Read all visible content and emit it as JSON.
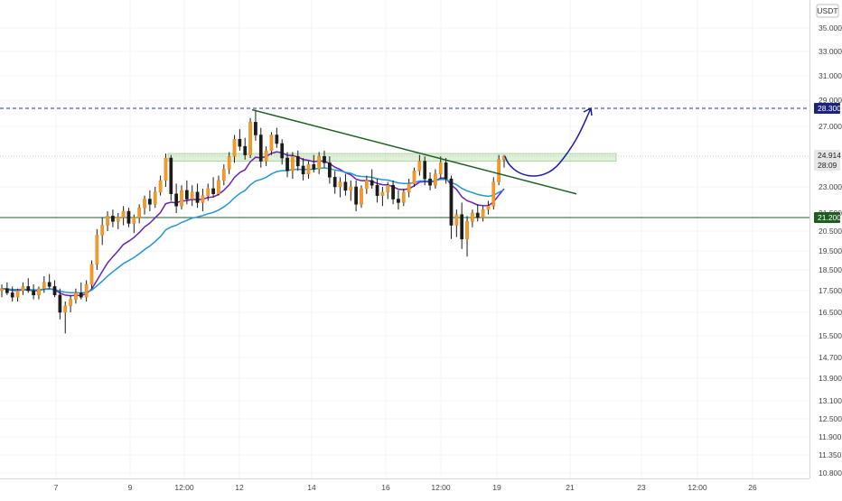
{
  "chart_data": {
    "type": "candlestick",
    "currency": "USDT",
    "y_ticks": [
      "35.000",
      "33.000",
      "31.000",
      "29.000",
      "27.000",
      "23.000",
      "21.500",
      "20.500",
      "19.500",
      "18.500",
      "17.500",
      "16.500",
      "15.500",
      "14.700",
      "13.900",
      "13.100",
      "12.500",
      "11.900",
      "11.350",
      "10.800"
    ],
    "x_ticks": [
      "7",
      "9",
      "12:00",
      "12",
      "14",
      "16",
      "12:00",
      "19",
      "21",
      "23",
      "12:00",
      "26"
    ],
    "price_labels": [
      {
        "text": "28.300",
        "kind": "blue"
      },
      {
        "text": "24.914",
        "kind": "gray"
      },
      {
        "text": "28:09",
        "kind": "gray2"
      },
      {
        "text": "21.200",
        "kind": "green"
      }
    ],
    "levels": {
      "resistance": 28.3,
      "support": 21.2,
      "current": 24.914,
      "zone": [
        24.6,
        25.1
      ]
    },
    "candles": [
      [
        17.5,
        17.8,
        17.2,
        17.6
      ],
      [
        17.6,
        17.9,
        17.3,
        17.4
      ],
      [
        17.4,
        17.7,
        17.0,
        17.2
      ],
      [
        17.2,
        17.6,
        17.0,
        17.5
      ],
      [
        17.5,
        17.9,
        17.3,
        17.7
      ],
      [
        17.7,
        18.1,
        17.4,
        17.5
      ],
      [
        17.5,
        17.8,
        17.1,
        17.3
      ],
      [
        17.3,
        17.7,
        17.1,
        17.6
      ],
      [
        17.6,
        18.2,
        17.4,
        17.9
      ],
      [
        17.9,
        18.3,
        17.6,
        17.7
      ],
      [
        17.7,
        18.0,
        17.2,
        17.3
      ],
      [
        17.3,
        17.6,
        16.2,
        16.5
      ],
      [
        16.5,
        17.0,
        15.6,
        16.8
      ],
      [
        16.8,
        17.3,
        16.5,
        17.1
      ],
      [
        17.1,
        17.6,
        16.9,
        17.4
      ],
      [
        17.4,
        17.9,
        17.1,
        17.2
      ],
      [
        17.2,
        18.0,
        17.0,
        17.8
      ],
      [
        17.8,
        19.0,
        17.6,
        18.8
      ],
      [
        18.8,
        20.6,
        18.5,
        20.3
      ],
      [
        20.3,
        21.2,
        19.8,
        20.8
      ],
      [
        20.8,
        21.6,
        20.5,
        21.3
      ],
      [
        21.3,
        21.7,
        20.7,
        21.0
      ],
      [
        21.0,
        21.5,
        20.6,
        21.2
      ],
      [
        21.2,
        21.9,
        20.8,
        21.6
      ],
      [
        21.6,
        21.8,
        20.7,
        20.9
      ],
      [
        20.9,
        21.4,
        20.4,
        21.2
      ],
      [
        21.2,
        22.0,
        20.9,
        21.8
      ],
      [
        21.8,
        22.5,
        21.4,
        22.3
      ],
      [
        22.3,
        22.8,
        21.6,
        22.0
      ],
      [
        22.0,
        23.0,
        21.8,
        22.7
      ],
      [
        22.7,
        23.7,
        22.5,
        23.4
      ],
      [
        23.4,
        25.1,
        23.0,
        24.8
      ],
      [
        24.8,
        25.0,
        22.2,
        22.6
      ],
      [
        22.6,
        23.2,
        21.5,
        21.9
      ],
      [
        21.9,
        23.1,
        21.7,
        22.8
      ],
      [
        22.8,
        23.4,
        22.0,
        22.3
      ],
      [
        22.3,
        23.1,
        21.9,
        22.7
      ],
      [
        22.7,
        23.2,
        21.8,
        22.1
      ],
      [
        22.1,
        22.9,
        21.6,
        22.5
      ],
      [
        22.5,
        23.2,
        22.2,
        22.9
      ],
      [
        22.9,
        23.6,
        22.4,
        22.6
      ],
      [
        22.6,
        23.7,
        22.5,
        23.4
      ],
      [
        23.4,
        24.4,
        23.1,
        24.1
      ],
      [
        24.1,
        25.2,
        23.8,
        24.9
      ],
      [
        24.9,
        26.4,
        24.5,
        26.1
      ],
      [
        26.1,
        26.8,
        25.3,
        25.6
      ],
      [
        25.6,
        26.2,
        24.7,
        25.0
      ],
      [
        25.0,
        27.6,
        24.8,
        27.3
      ],
      [
        27.3,
        28.2,
        26.0,
        26.4
      ],
      [
        26.4,
        26.9,
        24.2,
        24.6
      ],
      [
        24.6,
        25.6,
        24.3,
        25.3
      ],
      [
        25.3,
        26.6,
        25.0,
        26.4
      ],
      [
        26.4,
        26.9,
        25.5,
        25.8
      ],
      [
        25.8,
        26.1,
        24.4,
        24.8
      ],
      [
        24.8,
        25.2,
        23.6,
        24.0
      ],
      [
        24.0,
        25.2,
        23.5,
        24.9
      ],
      [
        24.9,
        25.3,
        24.0,
        24.3
      ],
      [
        24.3,
        24.8,
        23.4,
        23.8
      ],
      [
        23.8,
        24.6,
        23.5,
        24.4
      ],
      [
        24.4,
        25.0,
        23.9,
        24.1
      ],
      [
        24.1,
        25.2,
        23.8,
        24.9
      ],
      [
        24.9,
        25.3,
        24.2,
        24.5
      ],
      [
        24.5,
        24.9,
        23.2,
        23.6
      ],
      [
        23.6,
        24.0,
        22.6,
        23.0
      ],
      [
        23.0,
        23.6,
        22.4,
        23.3
      ],
      [
        23.3,
        23.8,
        22.5,
        22.8
      ],
      [
        22.8,
        23.4,
        22.2,
        23.0
      ],
      [
        23.0,
        23.4,
        21.6,
        22.0
      ],
      [
        22.0,
        23.1,
        21.8,
        22.9
      ],
      [
        22.9,
        23.7,
        22.6,
        23.4
      ],
      [
        23.4,
        24.1,
        22.9,
        23.1
      ],
      [
        23.1,
        23.5,
        22.1,
        22.5
      ],
      [
        22.5,
        23.0,
        21.9,
        22.7
      ],
      [
        22.7,
        23.3,
        22.3,
        23.1
      ],
      [
        23.1,
        23.4,
        22.0,
        22.3
      ],
      [
        22.3,
        22.8,
        21.7,
        22.1
      ],
      [
        22.1,
        22.9,
        21.9,
        22.7
      ],
      [
        22.7,
        23.5,
        22.4,
        23.2
      ],
      [
        23.2,
        24.2,
        23.0,
        24.0
      ],
      [
        24.0,
        25.0,
        23.7,
        24.6
      ],
      [
        24.6,
        24.9,
        23.1,
        23.5
      ],
      [
        23.5,
        23.9,
        22.8,
        23.1
      ],
      [
        23.1,
        24.1,
        22.9,
        23.8
      ],
      [
        23.8,
        24.9,
        23.5,
        24.5
      ],
      [
        24.5,
        24.8,
        23.2,
        23.5
      ],
      [
        23.5,
        23.7,
        20.1,
        20.8
      ],
      [
        20.8,
        21.7,
        20.2,
        21.4
      ],
      [
        21.4,
        22.1,
        19.6,
        20.1
      ],
      [
        20.1,
        21.3,
        19.2,
        21.0
      ],
      [
        21.0,
        21.7,
        20.7,
        21.5
      ],
      [
        21.5,
        22.0,
        21.0,
        21.2
      ],
      [
        21.2,
        21.9,
        21.0,
        21.7
      ],
      [
        21.7,
        22.2,
        21.4,
        21.9
      ],
      [
        21.9,
        23.6,
        21.7,
        23.3
      ],
      [
        23.3,
        25.0,
        23.1,
        24.7
      ],
      [
        24.7,
        25.0,
        24.2,
        24.914
      ]
    ],
    "series": [
      {
        "color": "#6a1fb5"
      },
      {
        "color": "#2196d6"
      }
    ],
    "annotations": [
      {
        "kind": "trendline",
        "color": "#1b5e20"
      },
      {
        "kind": "projection-curve",
        "color": "#1a1aa6"
      }
    ]
  }
}
